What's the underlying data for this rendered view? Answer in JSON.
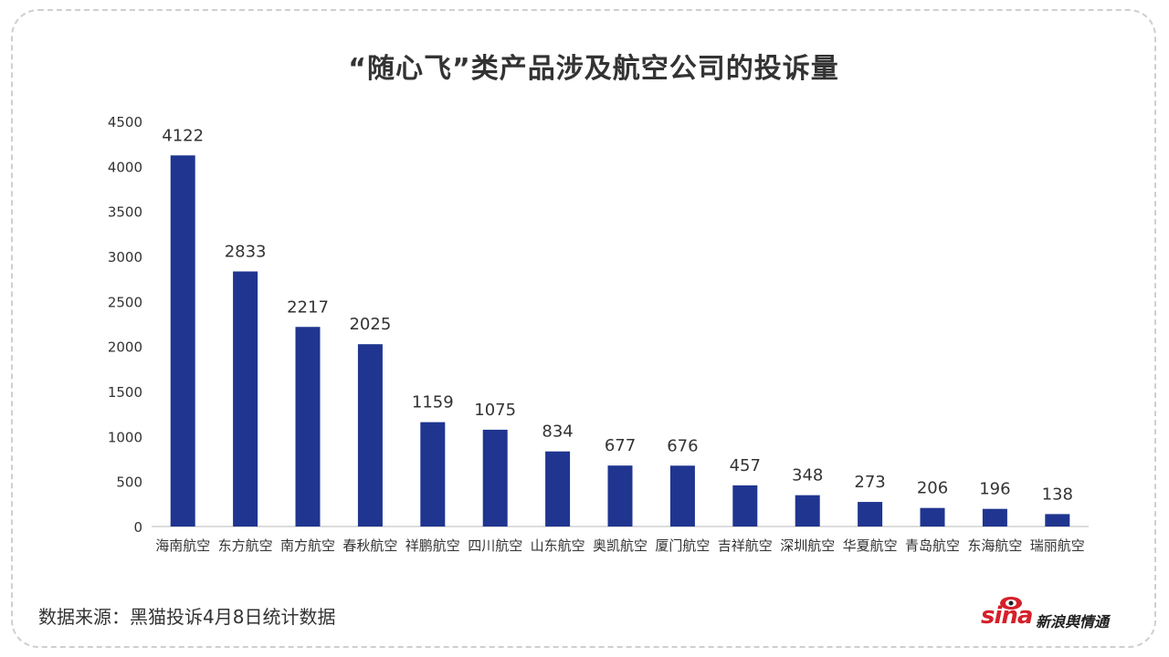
{
  "title": "“随心飞”类产品涉及航空公司的投诉量",
  "source": "数据来源：黑猫投诉4月8日统计数据",
  "logo": {
    "brand": "sina",
    "name": "新浪舆情通"
  },
  "colors": {
    "bar": "#1f3590",
    "axis": "#d0d0d0",
    "text": "#333333",
    "brand": "#d5202a"
  },
  "chart_data": {
    "type": "bar",
    "categories": [
      "海南航空",
      "东方航空",
      "南方航空",
      "春秋航空",
      "祥鹏航空",
      "四川航空",
      "山东航空",
      "奥凯航空",
      "厦门航空",
      "吉祥航空",
      "深圳航空",
      "华夏航空",
      "青岛航空",
      "东海航空",
      "瑞丽航空"
    ],
    "values": [
      4122,
      2833,
      2217,
      2025,
      1159,
      1075,
      834,
      677,
      676,
      457,
      348,
      273,
      206,
      196,
      138
    ],
    "ylim": [
      0,
      4500
    ],
    "yticks": [
      0,
      500,
      1000,
      1500,
      2000,
      2500,
      3000,
      3500,
      4000,
      4500
    ],
    "grid": false,
    "legend": "none"
  }
}
